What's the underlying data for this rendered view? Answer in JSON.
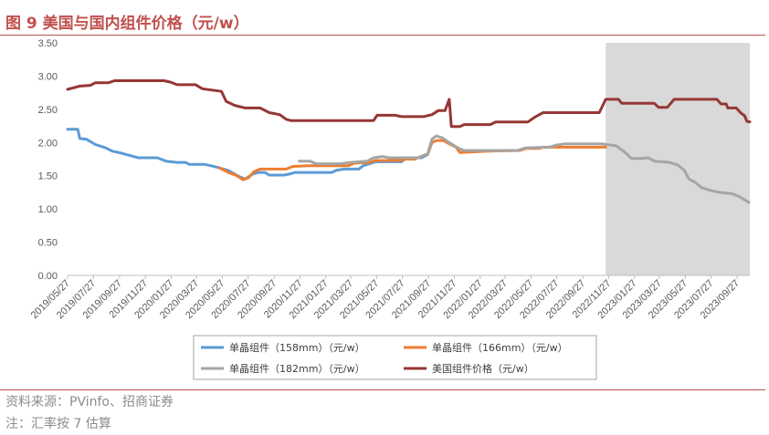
{
  "figure": {
    "title": "图 9 美国与国内组件价格（元/w）",
    "source": "资料来源：PVinfo、招商证券",
    "note": "注：汇率按 7 估算"
  },
  "colors": {
    "title": "#c0504d",
    "mono158": "#5b9bd5",
    "mono166": "#ed7d31",
    "mono182": "#a5a5a5",
    "us": "#953735",
    "forecast_band": "#d9d9d9"
  },
  "chart_data": {
    "type": "line",
    "xlabel": "",
    "ylabel": "",
    "ylim": [
      0,
      3.5
    ],
    "yticks": [
      "0.00",
      "0.50",
      "1.00",
      "1.50",
      "2.00",
      "2.50",
      "3.00",
      "3.50"
    ],
    "xlim": [
      "2019-05-27",
      "2023-10-27"
    ],
    "xticks": [
      "2019/05/27",
      "2019/07/27",
      "2019/09/27",
      "2019/11/27",
      "2020/01/27",
      "2020/03/27",
      "2020/05/27",
      "2020/07/27",
      "2020/09/27",
      "2020/11/27",
      "2021/01/27",
      "2021/03/27",
      "2021/05/27",
      "2021/07/27",
      "2021/09/27",
      "2021/11/27",
      "2022/01/27",
      "2022/03/27",
      "2022/05/27",
      "2022/07/27",
      "2022/09/27",
      "2022/11/27",
      "2023/01/27",
      "2023/03/27",
      "2023/05/27",
      "2023/07/27",
      "2023/09/27"
    ],
    "grid": false,
    "legend_position": "bottom",
    "shaded_region": [
      "2022-11-20",
      "2023-10-27"
    ],
    "series": [
      {
        "name": "单晶组件（158mm）（元/w）",
        "color_key": "mono158",
        "points": [
          [
            "2019-05-27",
            2.2
          ],
          [
            "2019-06-20",
            2.2
          ],
          [
            "2019-06-25",
            2.06
          ],
          [
            "2019-07-10",
            2.05
          ],
          [
            "2019-08-01",
            1.97
          ],
          [
            "2019-08-25",
            1.92
          ],
          [
            "2019-09-10",
            1.87
          ],
          [
            "2019-10-01",
            1.84
          ],
          [
            "2019-10-25",
            1.8
          ],
          [
            "2019-11-10",
            1.77
          ],
          [
            "2019-12-25",
            1.77
          ],
          [
            "2020-01-15",
            1.72
          ],
          [
            "2020-02-10",
            1.7
          ],
          [
            "2020-03-01",
            1.7
          ],
          [
            "2020-03-10",
            1.67
          ],
          [
            "2020-04-15",
            1.67
          ],
          [
            "2020-05-01",
            1.65
          ],
          [
            "2020-05-20",
            1.62
          ],
          [
            "2020-06-10",
            1.58
          ],
          [
            "2020-07-05",
            1.49
          ],
          [
            "2020-07-20",
            1.45
          ],
          [
            "2020-08-05",
            1.52
          ],
          [
            "2020-08-20",
            1.55
          ],
          [
            "2020-09-05",
            1.55
          ],
          [
            "2020-09-15",
            1.51
          ],
          [
            "2020-10-20",
            1.51
          ],
          [
            "2020-11-05",
            1.53
          ],
          [
            "2020-11-15",
            1.55
          ],
          [
            "2021-02-10",
            1.55
          ],
          [
            "2021-02-20",
            1.58
          ],
          [
            "2021-03-10",
            1.6
          ],
          [
            "2021-04-15",
            1.6
          ],
          [
            "2021-04-25",
            1.65
          ],
          [
            "2021-05-10",
            1.68
          ],
          [
            "2021-05-25",
            1.71
          ],
          [
            "2021-07-25",
            1.71
          ],
          [
            "2021-08-05",
            1.77
          ],
          [
            "2021-09-10",
            1.77
          ],
          [
            "2021-09-25",
            1.82
          ]
        ]
      },
      {
        "name": "单晶组件（166mm）（元/w）",
        "color_key": "mono166",
        "points": [
          [
            "2020-05-20",
            1.62
          ],
          [
            "2020-06-10",
            1.55
          ],
          [
            "2020-07-01",
            1.5
          ],
          [
            "2020-07-15",
            1.44
          ],
          [
            "2020-07-28",
            1.47
          ],
          [
            "2020-08-10",
            1.56
          ],
          [
            "2020-08-25",
            1.6
          ],
          [
            "2020-09-10",
            1.6
          ],
          [
            "2020-10-25",
            1.6
          ],
          [
            "2020-11-10",
            1.64
          ],
          [
            "2020-12-15",
            1.65
          ],
          [
            "2021-03-20",
            1.65
          ],
          [
            "2021-04-05",
            1.69
          ],
          [
            "2021-05-10",
            1.7
          ],
          [
            "2021-05-25",
            1.73
          ],
          [
            "2021-07-20",
            1.73
          ],
          [
            "2021-08-05",
            1.75
          ],
          [
            "2021-08-25",
            1.75
          ],
          [
            "2021-09-10",
            1.79
          ],
          [
            "2021-09-25",
            1.82
          ],
          [
            "2021-10-05",
            2.0
          ],
          [
            "2021-10-15",
            2.03
          ],
          [
            "2021-11-01",
            2.03
          ],
          [
            "2021-11-15",
            1.98
          ],
          [
            "2021-12-01",
            1.93
          ],
          [
            "2021-12-10",
            1.85
          ],
          [
            "2022-02-15",
            1.87
          ],
          [
            "2022-05-01",
            1.88
          ],
          [
            "2022-05-15",
            1.91
          ],
          [
            "2022-06-15",
            1.91
          ],
          [
            "2022-06-25",
            1.93
          ],
          [
            "2022-11-20",
            1.93
          ]
        ]
      },
      {
        "name": "单晶组件（182mm）（元/w）",
        "color_key": "mono182",
        "points": [
          [
            "2020-11-25",
            1.72
          ],
          [
            "2020-12-20",
            1.72
          ],
          [
            "2021-01-05",
            1.68
          ],
          [
            "2021-03-01",
            1.68
          ],
          [
            "2021-03-25",
            1.7
          ],
          [
            "2021-05-05",
            1.72
          ],
          [
            "2021-05-20",
            1.77
          ],
          [
            "2021-06-10",
            1.79
          ],
          [
            "2021-06-25",
            1.77
          ],
          [
            "2021-09-01",
            1.77
          ],
          [
            "2021-09-25",
            1.83
          ],
          [
            "2021-10-05",
            2.05
          ],
          [
            "2021-10-15",
            2.1
          ],
          [
            "2021-10-30",
            2.07
          ],
          [
            "2021-11-15",
            2.0
          ],
          [
            "2021-12-05",
            1.92
          ],
          [
            "2021-12-20",
            1.88
          ],
          [
            "2022-04-25",
            1.88
          ],
          [
            "2022-05-15",
            1.92
          ],
          [
            "2022-07-10",
            1.93
          ],
          [
            "2022-07-25",
            1.96
          ],
          [
            "2022-08-15",
            1.98
          ],
          [
            "2022-11-10",
            1.98
          ],
          [
            "2022-12-15",
            1.95
          ],
          [
            "2023-01-05",
            1.85
          ],
          [
            "2023-01-20",
            1.76
          ],
          [
            "2023-02-15",
            1.76
          ],
          [
            "2023-03-01",
            1.77
          ],
          [
            "2023-03-15",
            1.72
          ],
          [
            "2023-04-20",
            1.7
          ],
          [
            "2023-05-10",
            1.66
          ],
          [
            "2023-05-25",
            1.58
          ],
          [
            "2023-06-05",
            1.45
          ],
          [
            "2023-06-20",
            1.4
          ],
          [
            "2023-07-05",
            1.32
          ],
          [
            "2023-07-25",
            1.28
          ],
          [
            "2023-08-15",
            1.25
          ],
          [
            "2023-09-15",
            1.23
          ],
          [
            "2023-10-01",
            1.19
          ],
          [
            "2023-10-25",
            1.1
          ]
        ]
      },
      {
        "name": "美国组件价格（元/w）",
        "color_key": "us",
        "points": [
          [
            "2019-05-27",
            2.8
          ],
          [
            "2019-06-25",
            2.85
          ],
          [
            "2019-07-20",
            2.86
          ],
          [
            "2019-08-01",
            2.9
          ],
          [
            "2019-09-01",
            2.9
          ],
          [
            "2019-09-15",
            2.93
          ],
          [
            "2020-01-10",
            2.93
          ],
          [
            "2020-01-25",
            2.91
          ],
          [
            "2020-02-10",
            2.87
          ],
          [
            "2020-03-25",
            2.87
          ],
          [
            "2020-04-10",
            2.81
          ],
          [
            "2020-05-01",
            2.79
          ],
          [
            "2020-05-25",
            2.77
          ],
          [
            "2020-06-05",
            2.62
          ],
          [
            "2020-06-25",
            2.56
          ],
          [
            "2020-07-20",
            2.52
          ],
          [
            "2020-08-25",
            2.52
          ],
          [
            "2020-09-15",
            2.45
          ],
          [
            "2020-10-10",
            2.42
          ],
          [
            "2020-10-25",
            2.35
          ],
          [
            "2020-11-05",
            2.33
          ],
          [
            "2021-05-20",
            2.33
          ],
          [
            "2021-05-28",
            2.41
          ],
          [
            "2021-07-10",
            2.41
          ],
          [
            "2021-07-25",
            2.39
          ],
          [
            "2021-09-15",
            2.39
          ],
          [
            "2021-10-05",
            2.42
          ],
          [
            "2021-10-20",
            2.48
          ],
          [
            "2021-11-05",
            2.48
          ],
          [
            "2021-11-15",
            2.65
          ],
          [
            "2021-11-20",
            2.24
          ],
          [
            "2021-12-10",
            2.24
          ],
          [
            "2021-12-20",
            2.27
          ],
          [
            "2022-02-20",
            2.27
          ],
          [
            "2022-03-05",
            2.31
          ],
          [
            "2022-05-20",
            2.31
          ],
          [
            "2022-06-05",
            2.38
          ],
          [
            "2022-06-25",
            2.45
          ],
          [
            "2022-11-05",
            2.45
          ],
          [
            "2022-11-20",
            2.65
          ],
          [
            "2022-12-20",
            2.65
          ],
          [
            "2022-12-28",
            2.59
          ],
          [
            "2023-03-15",
            2.59
          ],
          [
            "2023-03-25",
            2.53
          ],
          [
            "2023-04-15",
            2.53
          ],
          [
            "2023-05-01",
            2.65
          ],
          [
            "2023-08-10",
            2.65
          ],
          [
            "2023-08-20",
            2.58
          ],
          [
            "2023-09-01",
            2.58
          ],
          [
            "2023-09-05",
            2.52
          ],
          [
            "2023-09-25",
            2.52
          ],
          [
            "2023-10-05",
            2.45
          ],
          [
            "2023-10-15",
            2.4
          ],
          [
            "2023-10-20",
            2.32
          ],
          [
            "2023-10-27",
            2.31
          ]
        ]
      }
    ]
  }
}
